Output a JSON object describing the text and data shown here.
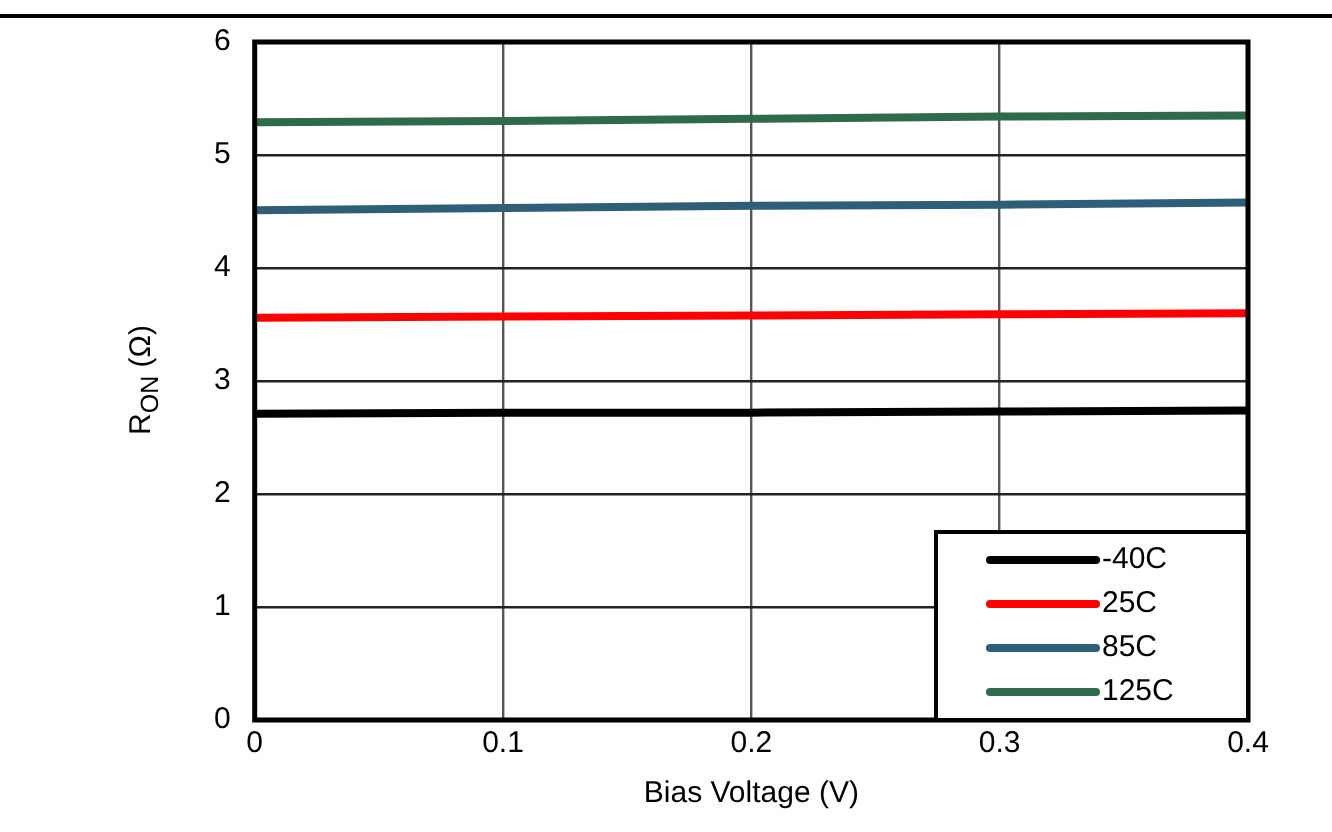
{
  "chart_data": {
    "type": "line",
    "xlabel": "Bias Voltage (V)",
    "ylabel": "R$_{ON}$ (Ω)",
    "x": [
      0,
      0.1,
      0.2,
      0.3,
      0.4
    ],
    "series": [
      {
        "name": "-40C",
        "color": "#000000",
        "values": [
          2.71,
          2.72,
          2.72,
          2.73,
          2.74
        ]
      },
      {
        "name": "25C",
        "color": "#ff0000",
        "values": [
          3.56,
          3.57,
          3.58,
          3.59,
          3.6
        ]
      },
      {
        "name": "85C",
        "color": "#2e5e78",
        "values": [
          4.51,
          4.53,
          4.55,
          4.56,
          4.58
        ]
      },
      {
        "name": "125C",
        "color": "#2e6b4a",
        "values": [
          5.29,
          5.3,
          5.32,
          5.34,
          5.35
        ]
      }
    ],
    "xlim": [
      0,
      0.4
    ],
    "xticks": [
      0,
      0.1,
      0.2,
      0.3,
      0.4
    ],
    "ylim": [
      0,
      6
    ],
    "yticks": [
      0,
      1,
      2,
      3,
      4,
      5,
      6
    ],
    "grid": true,
    "legend": "bottom right",
    "marker": "none",
    "line_style": "solid"
  }
}
